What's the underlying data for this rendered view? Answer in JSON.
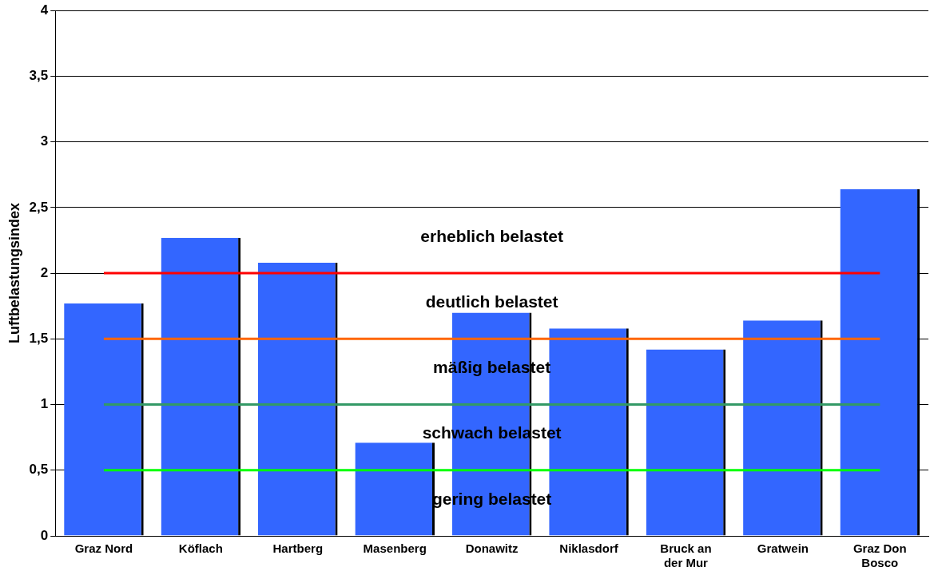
{
  "chart_data": {
    "type": "bar",
    "categories": [
      "Graz Nord",
      "Köflach",
      "Hartberg",
      "Masenberg",
      "Donawitz",
      "Niklasdorf",
      "Bruck an der Mur",
      "Gratwein",
      "Graz Don Bosco"
    ],
    "values": [
      1.77,
      2.27,
      2.08,
      0.71,
      1.7,
      1.58,
      1.42,
      1.64,
      2.64
    ],
    "color": "#3366ff",
    "ylabel": "Luftbelastungsindex",
    "ylim": [
      0,
      4
    ],
    "yticks": [
      0,
      {
        "value": 0.5,
        "label": "0,5"
      },
      1,
      {
        "value": 1.5,
        "label": "1,5"
      },
      2,
      {
        "value": 2.5,
        "label": "2,5"
      },
      3,
      {
        "value": 3.5,
        "label": "3,5"
      },
      4
    ],
    "grid": "y",
    "legend": false,
    "ref_lines": [
      {
        "axis": "y",
        "value": 2,
        "color": "#ff0000"
      },
      {
        "axis": "y",
        "value": 1.5,
        "color": "#ff6600"
      },
      {
        "axis": "y",
        "value": 1,
        "color": "#339966"
      },
      {
        "axis": "y",
        "value": 0.5,
        "color": "#00ff00"
      }
    ],
    "annotations": [
      "erheblich belastet",
      "deutlich belastet",
      "mäßig belastet",
      "schwach belastet",
      "gering belastet"
    ]
  }
}
